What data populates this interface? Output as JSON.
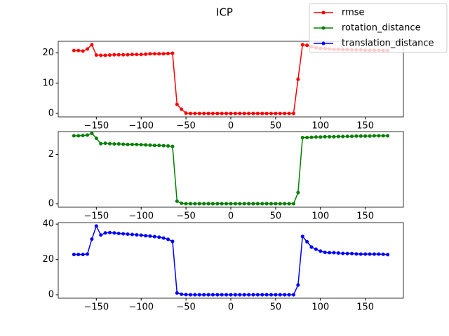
{
  "title": "ICP",
  "legend": "upper right",
  "chart_data": [
    {
      "type": "line",
      "x": [
        -175,
        -170,
        -165,
        -160,
        -155,
        -150,
        -145,
        -140,
        -135,
        -130,
        -125,
        -120,
        -115,
        -110,
        -105,
        -100,
        -95,
        -90,
        -85,
        -80,
        -75,
        -70,
        -65,
        -60,
        -55,
        -50,
        -45,
        -40,
        -35,
        -30,
        -25,
        -20,
        -15,
        -10,
        -5,
        0,
        5,
        10,
        15,
        20,
        25,
        30,
        35,
        40,
        45,
        50,
        55,
        60,
        65,
        70,
        75,
        80,
        85,
        90,
        95,
        100,
        105,
        110,
        115,
        120,
        125,
        130,
        135,
        140,
        145,
        150,
        155,
        160,
        165,
        170,
        175
      ],
      "series": [
        {
          "name": "rmse",
          "color": "#ff0000",
          "values": [
            20.8,
            20.8,
            20.6,
            21.3,
            22.7,
            19.3,
            19.2,
            19.2,
            19.3,
            19.4,
            19.4,
            19.4,
            19.4,
            19.5,
            19.5,
            19.5,
            19.6,
            19.7,
            19.7,
            19.7,
            19.7,
            19.8,
            19.9,
            3.0,
            1.4,
            0.1,
            0,
            0,
            0,
            0,
            0,
            0,
            0,
            0,
            0,
            0,
            0,
            0,
            0,
            0,
            0,
            0,
            0,
            0,
            0,
            0,
            0,
            0,
            0,
            0,
            11.3,
            22.7,
            22.5,
            22.0,
            21.7,
            21.5,
            21.4,
            21.3,
            21.2,
            21.2,
            21.1,
            21.1,
            21.0,
            21.0,
            21.0,
            20.9,
            20.9,
            20.9,
            20.9,
            20.8,
            20.8
          ]
        }
      ],
      "xlim": [
        -192.5,
        192.5
      ],
      "xticks": [
        {
          "value": -150,
          "label": "−150"
        },
        {
          "value": -100,
          "label": "−100"
        },
        {
          "value": -50,
          "label": "−50"
        },
        0,
        50,
        100,
        150
      ],
      "ylim": [
        -1.14,
        23.84
      ],
      "yticks": [
        0,
        10,
        20
      ]
    },
    {
      "type": "line",
      "x": [
        -175,
        -170,
        -165,
        -160,
        -155,
        -150,
        -145,
        -140,
        -135,
        -130,
        -125,
        -120,
        -115,
        -110,
        -105,
        -100,
        -95,
        -90,
        -85,
        -80,
        -75,
        -70,
        -65,
        -60,
        -55,
        -50,
        -45,
        -40,
        -35,
        -30,
        -25,
        -20,
        -15,
        -10,
        -5,
        0,
        5,
        10,
        15,
        20,
        25,
        30,
        35,
        40,
        45,
        50,
        55,
        60,
        65,
        70,
        75,
        80,
        85,
        90,
        95,
        100,
        105,
        110,
        115,
        120,
        125,
        130,
        135,
        140,
        145,
        150,
        155,
        160,
        165,
        170,
        175
      ],
      "series": [
        {
          "name": "rotation_distance",
          "color": "#008000",
          "values": [
            2.75,
            2.75,
            2.76,
            2.78,
            2.85,
            2.65,
            2.43,
            2.45,
            2.43,
            2.42,
            2.42,
            2.41,
            2.4,
            2.4,
            2.4,
            2.39,
            2.38,
            2.37,
            2.36,
            2.36,
            2.35,
            2.34,
            2.32,
            0.1,
            0.02,
            0,
            0,
            0,
            0,
            0,
            0,
            0,
            0,
            0,
            0,
            0,
            0,
            0,
            0,
            0,
            0,
            0,
            0,
            0,
            0,
            0,
            0,
            0,
            0,
            0,
            0.45,
            2.68,
            2.68,
            2.69,
            2.7,
            2.7,
            2.71,
            2.71,
            2.71,
            2.72,
            2.72,
            2.73,
            2.73,
            2.74,
            2.74,
            2.74,
            2.74,
            2.75,
            2.75,
            2.75,
            2.75
          ]
        }
      ],
      "xlim": [
        -192.5,
        192.5
      ],
      "xticks": [
        {
          "value": -150,
          "label": "−150"
        },
        {
          "value": -100,
          "label": "−100"
        },
        {
          "value": -50,
          "label": "−50"
        },
        0,
        50,
        100,
        150
      ],
      "ylim": [
        -0.14,
        2.92
      ],
      "yticks": [
        0,
        2
      ]
    },
    {
      "type": "line",
      "x": [
        -175,
        -170,
        -165,
        -160,
        -155,
        -150,
        -145,
        -140,
        -135,
        -130,
        -125,
        -120,
        -115,
        -110,
        -105,
        -100,
        -95,
        -90,
        -85,
        -80,
        -75,
        -70,
        -65,
        -60,
        -55,
        -50,
        -45,
        -40,
        -35,
        -30,
        -25,
        -20,
        -15,
        -10,
        -5,
        0,
        5,
        10,
        15,
        20,
        25,
        30,
        35,
        40,
        45,
        50,
        55,
        60,
        65,
        70,
        75,
        80,
        85,
        90,
        95,
        100,
        105,
        110,
        115,
        120,
        125,
        130,
        135,
        140,
        145,
        150,
        155,
        160,
        165,
        170,
        175
      ],
      "series": [
        {
          "name": "translation_distance",
          "color": "#0000ff",
          "values": [
            22.8,
            22.8,
            22.8,
            23.0,
            31.5,
            38.9,
            33.8,
            35.0,
            35.2,
            35.0,
            34.7,
            34.5,
            34.3,
            34.1,
            33.9,
            33.7,
            33.4,
            33.2,
            32.9,
            32.6,
            32.1,
            31.4,
            30.2,
            1.0,
            0.3,
            0.1,
            0,
            0,
            0,
            0,
            0,
            0,
            0,
            0,
            0,
            0,
            0,
            0,
            0,
            0,
            0,
            0,
            0,
            0,
            0,
            0,
            0,
            0,
            0,
            0,
            5.5,
            33.0,
            30.0,
            27.0,
            25.8,
            24.7,
            24.0,
            23.8,
            23.8,
            23.6,
            23.4,
            23.3,
            23.3,
            23.1,
            23.0,
            23.0,
            23.0,
            23.0,
            23.0,
            22.9,
            22.7
          ]
        }
      ],
      "xlim": [
        -192.5,
        192.5
      ],
      "xticks": [
        {
          "value": -150,
          "label": "−150"
        },
        {
          "value": -100,
          "label": "−100"
        },
        {
          "value": -50,
          "label": "−50"
        },
        0,
        50,
        100,
        150
      ],
      "ylim": [
        -1.95,
        40.85
      ],
      "yticks": [
        0,
        20,
        40
      ]
    }
  ]
}
